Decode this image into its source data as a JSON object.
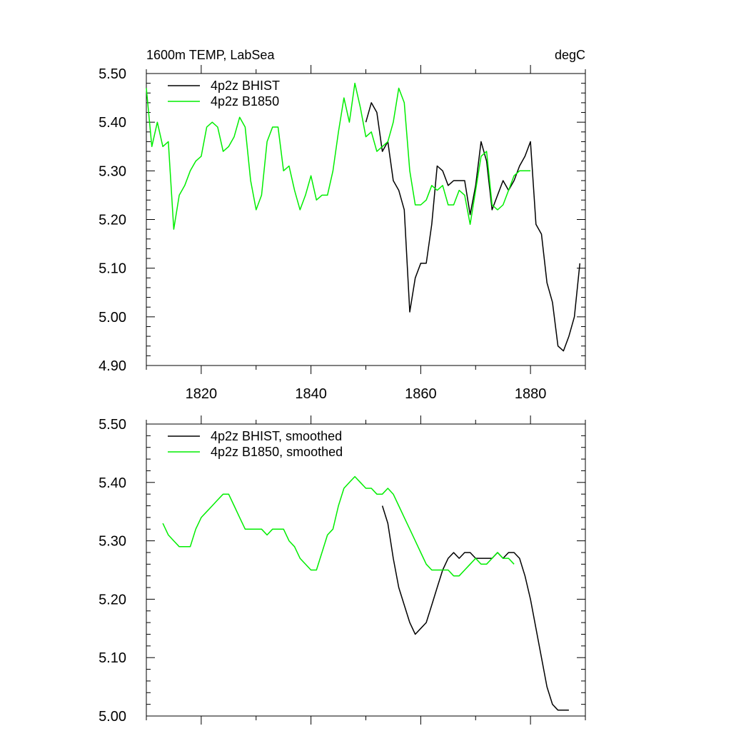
{
  "chart_data": [
    {
      "type": "line",
      "title": "1600m TEMP, LabSea",
      "units": "degC",
      "xlim": [
        1810,
        1890
      ],
      "ylim": [
        4.9,
        5.5
      ],
      "xticks": [
        1820,
        1840,
        1860,
        1880
      ],
      "yticks": [
        4.9,
        5.0,
        5.1,
        5.2,
        5.3,
        5.4,
        5.5
      ],
      "ytick_labels": [
        "4.90",
        "5.00",
        "5.10",
        "5.20",
        "5.30",
        "5.40",
        "5.50"
      ],
      "legend": "top-left",
      "series": [
        {
          "name": "4p2z BHIST",
          "color": "#000000",
          "x": [
            1850,
            1851,
            1852,
            1853,
            1854,
            1855,
            1856,
            1857,
            1858,
            1859,
            1860,
            1861,
            1862,
            1863,
            1864,
            1865,
            1866,
            1867,
            1868,
            1869,
            1870,
            1871,
            1872,
            1873,
            1874,
            1875,
            1876,
            1877,
            1878,
            1879,
            1880,
            1881,
            1882,
            1883,
            1884,
            1885,
            1886,
            1887,
            1888,
            1889
          ],
          "y": [
            5.4,
            5.44,
            5.42,
            5.34,
            5.36,
            5.28,
            5.26,
            5.22,
            5.01,
            5.08,
            5.11,
            5.11,
            5.19,
            5.31,
            5.3,
            5.27,
            5.28,
            5.28,
            5.28,
            5.21,
            5.27,
            5.36,
            5.32,
            5.22,
            5.25,
            5.28,
            5.26,
            5.28,
            5.31,
            5.33,
            5.36,
            5.19,
            5.17,
            5.07,
            5.03,
            4.94,
            4.93,
            4.96,
            5.0,
            5.11
          ]
        },
        {
          "name": "4p2z B1850",
          "color": "#00ee00",
          "x": [
            1810,
            1811,
            1812,
            1813,
            1814,
            1815,
            1816,
            1817,
            1818,
            1819,
            1820,
            1821,
            1822,
            1823,
            1824,
            1825,
            1826,
            1827,
            1828,
            1829,
            1830,
            1831,
            1832,
            1833,
            1834,
            1835,
            1836,
            1837,
            1838,
            1839,
            1840,
            1841,
            1842,
            1843,
            1844,
            1845,
            1846,
            1847,
            1848,
            1849,
            1850,
            1851,
            1852,
            1853,
            1854,
            1855,
            1856,
            1857,
            1858,
            1859,
            1860,
            1861,
            1862,
            1863,
            1864,
            1865,
            1866,
            1867,
            1868,
            1869,
            1870,
            1871,
            1872,
            1873,
            1874,
            1875,
            1876,
            1877,
            1878,
            1879,
            1880
          ],
          "y": [
            5.47,
            5.35,
            5.4,
            5.35,
            5.36,
            5.18,
            5.25,
            5.27,
            5.3,
            5.32,
            5.33,
            5.39,
            5.4,
            5.39,
            5.34,
            5.35,
            5.37,
            5.41,
            5.39,
            5.28,
            5.22,
            5.25,
            5.36,
            5.39,
            5.39,
            5.3,
            5.31,
            5.26,
            5.22,
            5.25,
            5.29,
            5.24,
            5.25,
            5.25,
            5.3,
            5.38,
            5.45,
            5.4,
            5.48,
            5.43,
            5.37,
            5.38,
            5.34,
            5.35,
            5.36,
            5.4,
            5.47,
            5.44,
            5.3,
            5.23,
            5.23,
            5.24,
            5.27,
            5.26,
            5.27,
            5.23,
            5.23,
            5.26,
            5.25,
            5.19,
            5.26,
            5.33,
            5.34,
            5.23,
            5.22,
            5.23,
            5.26,
            5.29,
            5.3,
            5.3,
            5.3
          ]
        }
      ]
    },
    {
      "type": "line",
      "title": "",
      "xlim": [
        1810,
        1890
      ],
      "ylim": [
        5.0,
        5.5
      ],
      "xticks": [
        1820,
        1840,
        1860,
        1880
      ],
      "yticks": [
        5.0,
        5.1,
        5.2,
        5.3,
        5.4,
        5.5
      ],
      "ytick_labels": [
        "5.00",
        "5.10",
        "5.20",
        "5.30",
        "5.40",
        "5.50"
      ],
      "legend": "top-left",
      "series": [
        {
          "name": "4p2z BHIST, smoothed",
          "color": "#000000",
          "x": [
            1853,
            1854,
            1855,
            1856,
            1857,
            1858,
            1859,
            1860,
            1861,
            1862,
            1863,
            1864,
            1865,
            1866,
            1867,
            1868,
            1869,
            1870,
            1871,
            1872,
            1873,
            1874,
            1875,
            1876,
            1877,
            1878,
            1879,
            1880,
            1881,
            1882,
            1883,
            1884,
            1885,
            1886,
            1887
          ],
          "y": [
            5.36,
            5.33,
            5.27,
            5.22,
            5.19,
            5.16,
            5.14,
            5.15,
            5.16,
            5.19,
            5.22,
            5.25,
            5.27,
            5.28,
            5.27,
            5.28,
            5.28,
            5.27,
            5.27,
            5.27,
            5.27,
            5.28,
            5.27,
            5.28,
            5.28,
            5.27,
            5.24,
            5.2,
            5.15,
            5.1,
            5.05,
            5.02,
            5.01,
            5.01,
            5.01
          ]
        },
        {
          "name": "4p2z B1850, smoothed",
          "color": "#00ee00",
          "x": [
            1813,
            1814,
            1815,
            1816,
            1817,
            1818,
            1819,
            1820,
            1821,
            1822,
            1823,
            1824,
            1825,
            1826,
            1827,
            1828,
            1829,
            1830,
            1831,
            1832,
            1833,
            1834,
            1835,
            1836,
            1837,
            1838,
            1839,
            1840,
            1841,
            1842,
            1843,
            1844,
            1845,
            1846,
            1847,
            1848,
            1849,
            1850,
            1851,
            1852,
            1853,
            1854,
            1855,
            1856,
            1857,
            1858,
            1859,
            1860,
            1861,
            1862,
            1863,
            1864,
            1865,
            1866,
            1867,
            1868,
            1869,
            1870,
            1871,
            1872,
            1873,
            1874,
            1875,
            1876,
            1877
          ],
          "y": [
            5.33,
            5.31,
            5.3,
            5.29,
            5.29,
            5.29,
            5.32,
            5.34,
            5.35,
            5.36,
            5.37,
            5.38,
            5.38,
            5.36,
            5.34,
            5.32,
            5.32,
            5.32,
            5.32,
            5.31,
            5.32,
            5.32,
            5.32,
            5.3,
            5.29,
            5.27,
            5.26,
            5.25,
            5.25,
            5.28,
            5.31,
            5.32,
            5.36,
            5.39,
            5.4,
            5.41,
            5.4,
            5.39,
            5.39,
            5.38,
            5.38,
            5.39,
            5.38,
            5.36,
            5.34,
            5.32,
            5.3,
            5.28,
            5.26,
            5.25,
            5.25,
            5.25,
            5.25,
            5.24,
            5.24,
            5.25,
            5.26,
            5.27,
            5.26,
            5.26,
            5.27,
            5.28,
            5.27,
            5.27,
            5.26
          ]
        }
      ]
    }
  ]
}
